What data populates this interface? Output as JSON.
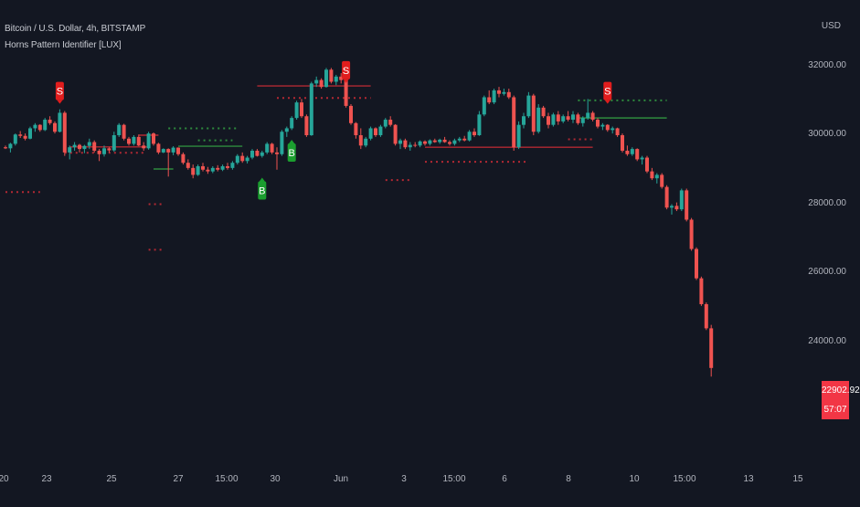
{
  "header": {
    "symbol_line": "Bitcoin / U.S. Dollar, 4h, BITSTAMP",
    "indicator": "Horns Pattern Identifier [LUX]",
    "currency": "USD"
  },
  "price_tag": {
    "price": "22902.92",
    "countdown": "57:07",
    "color": "#f23645"
  },
  "colors": {
    "up": "#26a69a",
    "down": "#ef5350",
    "buy": "#1b9e2f",
    "sell": "#e11d1d",
    "bg": "#131722"
  },
  "chart_data": {
    "type": "candlestick",
    "y_ticks": [
      "32000.00",
      "30000.00",
      "28000.00",
      "26000.00",
      "24000.00"
    ],
    "y_tick_values": [
      32000,
      30000,
      28000,
      26000,
      24000
    ],
    "x_ticks": [
      "20",
      "23",
      "25",
      "27",
      "15:00",
      "30",
      "Jun",
      "3",
      "15:00",
      "6",
      "8",
      "10",
      "15:00",
      "13",
      "15"
    ],
    "signals": [
      {
        "label": "S",
        "type": "sell",
        "price": 30700
      },
      {
        "label": "B",
        "type": "buy",
        "price": 28900
      },
      {
        "label": "B",
        "type": "buy",
        "price": 30000
      },
      {
        "label": "S",
        "type": "sell",
        "price": 31300
      },
      {
        "label": "S",
        "type": "sell",
        "price": 30700
      }
    ],
    "levels": [
      {
        "color": "red",
        "style": "dashed",
        "price": 28350
      },
      {
        "color": "red",
        "style": "solid",
        "price": 29660
      },
      {
        "color": "red",
        "style": "dashed",
        "price": 29490
      },
      {
        "color": "red",
        "style": "solid",
        "price": 30000
      },
      {
        "color": "red",
        "style": "dashed",
        "price": 28000
      },
      {
        "color": "red",
        "style": "dashed",
        "price": 26680
      },
      {
        "color": "green",
        "style": "dashed",
        "price": 30200
      },
      {
        "color": "green",
        "style": "dashed",
        "price": 29850
      },
      {
        "color": "green",
        "style": "solid",
        "price": 29680
      },
      {
        "color": "green",
        "style": "solid",
        "price": 29020
      },
      {
        "color": "red",
        "style": "solid",
        "price": 31430
      },
      {
        "color": "red",
        "style": "dashed",
        "price": 31080
      },
      {
        "color": "red",
        "style": "solid",
        "price": 29650
      },
      {
        "color": "red",
        "style": "dashed",
        "price": 29230
      },
      {
        "color": "red",
        "style": "dashed",
        "price": 28700
      },
      {
        "color": "green",
        "style": "dashed",
        "price": 31010
      },
      {
        "color": "green",
        "style": "solid",
        "price": 30500
      },
      {
        "color": "red",
        "style": "dashed",
        "price": 29880
      }
    ],
    "candles": [
      [
        29650,
        29700,
        29600,
        29620
      ],
      [
        29620,
        29780,
        29500,
        29750
      ],
      [
        29750,
        30050,
        29700,
        30020
      ],
      [
        30020,
        30120,
        29920,
        29980
      ],
      [
        29980,
        30050,
        29850,
        29900
      ],
      [
        29900,
        30250,
        29880,
        30200
      ],
      [
        30200,
        30350,
        30100,
        30300
      ],
      [
        30300,
        30320,
        30100,
        30150
      ],
      [
        30150,
        30500,
        30120,
        30450
      ],
      [
        30450,
        30550,
        30300,
        30350
      ],
      [
        30350,
        30400,
        30050,
        30100
      ],
      [
        30100,
        30750,
        30080,
        30650
      ],
      [
        30650,
        30700,
        29400,
        29500
      ],
      [
        29500,
        29700,
        29300,
        29650
      ],
      [
        29650,
        29800,
        29550,
        29720
      ],
      [
        29720,
        29750,
        29500,
        29600
      ],
      [
        29600,
        29720,
        29480,
        29690
      ],
      [
        29690,
        29900,
        29600,
        29800
      ],
      [
        29800,
        29850,
        29500,
        29550
      ],
      [
        29550,
        29600,
        29250,
        29450
      ],
      [
        29450,
        29700,
        29380,
        29620
      ],
      [
        29620,
        29650,
        29500,
        29560
      ],
      [
        29560,
        30100,
        29520,
        30000
      ],
      [
        30000,
        30350,
        29950,
        30300
      ],
      [
        30300,
        30330,
        29850,
        29900
      ],
      [
        29900,
        29950,
        29700,
        29750
      ],
      [
        29750,
        30000,
        29700,
        29950
      ],
      [
        29950,
        30020,
        29680,
        29700
      ],
      [
        29700,
        29800,
        29550,
        29620
      ],
      [
        29620,
        30100,
        29580,
        30050
      ],
      [
        30050,
        30080,
        29700,
        29750
      ],
      [
        29750,
        29780,
        29450,
        29500
      ],
      [
        29500,
        29620,
        29480,
        29600
      ],
      [
        29600,
        29620,
        28800,
        29500
      ],
      [
        29500,
        29680,
        29420,
        29640
      ],
      [
        29640,
        29650,
        29400,
        29450
      ],
      [
        29450,
        29500,
        29150,
        29200
      ],
      [
        29200,
        29300,
        29000,
        29050
      ],
      [
        29050,
        29150,
        28750,
        28850
      ],
      [
        28850,
        29150,
        28820,
        29100
      ],
      [
        29100,
        29200,
        28950,
        29000
      ],
      [
        29000,
        29080,
        28880,
        28950
      ],
      [
        28950,
        29100,
        28900,
        29050
      ],
      [
        29050,
        29130,
        28950,
        29000
      ],
      [
        29000,
        29150,
        28960,
        29100
      ],
      [
        29100,
        29200,
        29000,
        29050
      ],
      [
        29050,
        29250,
        29000,
        29200
      ],
      [
        29200,
        29450,
        29150,
        29400
      ],
      [
        29400,
        29500,
        29200,
        29250
      ],
      [
        29250,
        29400,
        29180,
        29350
      ],
      [
        29350,
        29600,
        29300,
        29550
      ],
      [
        29550,
        29600,
        29380,
        29400
      ],
      [
        29400,
        29550,
        29350,
        29500
      ],
      [
        29500,
        29800,
        29450,
        29750
      ],
      [
        29750,
        29780,
        29450,
        29500
      ],
      [
        29500,
        29650,
        29000,
        29450
      ],
      [
        29450,
        30150,
        29400,
        30100
      ],
      [
        30100,
        30250,
        29950,
        30200
      ],
      [
        30200,
        30550,
        30150,
        30500
      ],
      [
        30500,
        31000,
        30450,
        30950
      ],
      [
        30950,
        31050,
        30500,
        30550
      ],
      [
        30550,
        30600,
        29950,
        30000
      ],
      [
        30000,
        31550,
        29980,
        31500
      ],
      [
        31500,
        31700,
        31400,
        31600
      ],
      [
        31600,
        31650,
        31350,
        31400
      ],
      [
        31400,
        31950,
        31380,
        31900
      ],
      [
        31900,
        31950,
        31500,
        31550
      ],
      [
        31550,
        31750,
        31450,
        31700
      ],
      [
        31700,
        31800,
        31500,
        31600
      ],
      [
        31600,
        31620,
        30800,
        30850
      ],
      [
        30850,
        30900,
        30300,
        30350
      ],
      [
        30350,
        30380,
        29900,
        30000
      ],
      [
        30000,
        30200,
        29600,
        29700
      ],
      [
        29700,
        29950,
        29650,
        29900
      ],
      [
        29900,
        30250,
        29850,
        30200
      ],
      [
        30200,
        30230,
        29950,
        30000
      ],
      [
        30000,
        30300,
        29950,
        30250
      ],
      [
        30250,
        30500,
        30200,
        30450
      ],
      [
        30450,
        30550,
        30250,
        30300
      ],
      [
        30300,
        30320,
        29700,
        29750
      ],
      [
        29750,
        29900,
        29600,
        29850
      ],
      [
        29850,
        29900,
        29600,
        29650
      ],
      [
        29650,
        29800,
        29550,
        29720
      ],
      [
        29720,
        29800,
        29650,
        29700
      ],
      [
        29700,
        29850,
        29650,
        29820
      ],
      [
        29820,
        29850,
        29700,
        29750
      ],
      [
        29750,
        29880,
        29700,
        29850
      ],
      [
        29850,
        29900,
        29780,
        29800
      ],
      [
        29800,
        29900,
        29750,
        29870
      ],
      [
        29870,
        29950,
        29780,
        29800
      ],
      [
        29800,
        29850,
        29700,
        29750
      ],
      [
        29750,
        29900,
        29700,
        29850
      ],
      [
        29850,
        29950,
        29800,
        29900
      ],
      [
        29900,
        29980,
        29820,
        29850
      ],
      [
        29850,
        30150,
        29820,
        30100
      ],
      [
        30100,
        30200,
        29950,
        30000
      ],
      [
        30000,
        30700,
        29980,
        30600
      ],
      [
        30600,
        31150,
        30550,
        31100
      ],
      [
        31100,
        31300,
        30900,
        30950
      ],
      [
        30950,
        31350,
        30900,
        31300
      ],
      [
        31300,
        31400,
        31100,
        31200
      ],
      [
        31200,
        31350,
        31150,
        31250
      ],
      [
        31250,
        31350,
        31050,
        31100
      ],
      [
        31100,
        31150,
        29550,
        29650
      ],
      [
        29650,
        30400,
        29600,
        30300
      ],
      [
        30300,
        30650,
        30200,
        30550
      ],
      [
        30550,
        31250,
        30500,
        31150
      ],
      [
        31150,
        31200,
        30000,
        30100
      ],
      [
        30100,
        30900,
        30050,
        30800
      ],
      [
        30800,
        30850,
        30500,
        30550
      ],
      [
        30550,
        30650,
        30200,
        30300
      ],
      [
        30300,
        30650,
        30250,
        30600
      ],
      [
        30600,
        30700,
        30300,
        30400
      ],
      [
        30400,
        30600,
        30350,
        30550
      ],
      [
        30550,
        30700,
        30400,
        30450
      ],
      [
        30450,
        30700,
        30350,
        30600
      ],
      [
        30600,
        30650,
        30300,
        30350
      ],
      [
        30350,
        30550,
        30250,
        30500
      ],
      [
        30500,
        31050,
        30450,
        30650
      ],
      [
        30650,
        30700,
        30400,
        30450
      ],
      [
        30450,
        30500,
        30200,
        30250
      ],
      [
        30250,
        30350,
        30150,
        30300
      ],
      [
        30300,
        30320,
        30100,
        30150
      ],
      [
        30150,
        30250,
        30050,
        30200
      ],
      [
        30200,
        30220,
        29950,
        30000
      ],
      [
        30000,
        30050,
        29500,
        29550
      ],
      [
        29550,
        29700,
        29400,
        29450
      ],
      [
        29450,
        29650,
        29400,
        29600
      ],
      [
        29600,
        29620,
        29250,
        29300
      ],
      [
        29300,
        29400,
        29150,
        29350
      ],
      [
        29350,
        29400,
        28900,
        28950
      ],
      [
        28950,
        29050,
        28700,
        28750
      ],
      [
        28750,
        28900,
        28600,
        28850
      ],
      [
        28850,
        28900,
        28450,
        28500
      ],
      [
        28500,
        28550,
        27850,
        27900
      ],
      [
        27900,
        28000,
        27700,
        27950
      ],
      [
        27950,
        28050,
        27800,
        27850
      ],
      [
        27850,
        28450,
        27800,
        28400
      ],
      [
        28400,
        28450,
        27500,
        27550
      ],
      [
        27550,
        27600,
        26650,
        26700
      ],
      [
        26700,
        26750,
        25800,
        25850
      ],
      [
        25850,
        25900,
        25050,
        25100
      ],
      [
        25100,
        25150,
        24350,
        24400
      ],
      [
        24400,
        24500,
        23000,
        23250
      ]
    ]
  }
}
